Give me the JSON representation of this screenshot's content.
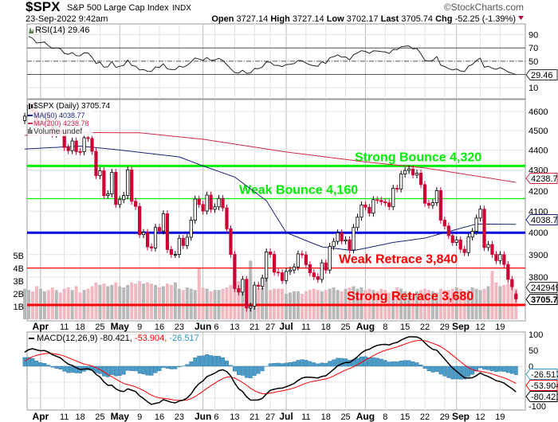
{
  "header": {
    "symbol": "$SPX",
    "name": "S&P 500 Large Cap Index",
    "exchange": "INDX",
    "copyright": "©StockCharts.com",
    "datetime": "23-Sep-2022 9:42am",
    "open_label": "Open",
    "open": "3727.14",
    "high_label": "High",
    "high": "3727.14",
    "low_label": "Low",
    "low": "3702.17",
    "last_label": "Last",
    "last": "3705.74",
    "chg_label": "Chg",
    "chg": "-52.25 (-1.39%)",
    "chg_direction": "down"
  },
  "colors": {
    "up": "#000000",
    "down": "#cc0033",
    "ma50": "#1a237e",
    "ma200": "#d0284a",
    "macd": "#000000",
    "signal": "#ff0000",
    "hist": "#4a9cc9",
    "vol_up": "#b8b8b8",
    "vol_down": "#f0b8c0",
    "green": "#00ee00",
    "blue": "#0000dd",
    "red": "#ff0000"
  },
  "chart_data": [
    {
      "type": "line",
      "panel": "RSI",
      "legend": "RSI(14) 29.46",
      "last_value_label": "29.46",
      "yticks": [
        10,
        30,
        50,
        70,
        90
      ],
      "ytick_labels": [
        "10",
        "",
        "50",
        "70",
        "90"
      ],
      "ylim": [
        0,
        100
      ],
      "reference_lines": [
        30,
        50,
        70
      ]
    },
    {
      "type": "candlestick",
      "panel": "Price",
      "scale": "log",
      "legend": [
        "$SPX (Daily) 3705.74",
        "MA(50) 4038.77",
        "MA(200) 4238.78",
        "Volume undef"
      ],
      "yticks": [
        3800,
        3900,
        4000,
        4100,
        4200,
        4300,
        4400,
        4500,
        4600
      ],
      "ylim": [
        3620,
        4660
      ],
      "last_value_label": "3705.74",
      "ma50_label": "4038.77",
      "ma200_label": "4238.78",
      "volume_label": "2429493",
      "volume_ticks": [
        "1B",
        "2B",
        "3B",
        "4B",
        "5B"
      ],
      "ma50": [
        [
          "2022-03-28",
          4405
        ],
        [
          "2022-04-18",
          4420
        ],
        [
          "2022-05-02",
          4400
        ],
        [
          "2022-05-23",
          4365
        ],
        [
          "2022-06-01",
          4320
        ],
        [
          "2022-06-13",
          4265
        ],
        [
          "2022-06-24",
          4150
        ],
        [
          "2022-07-01",
          4000
        ],
        [
          "2022-07-15",
          3935
        ],
        [
          "2022-07-27",
          3918
        ],
        [
          "2022-08-10",
          3955
        ],
        [
          "2022-08-22",
          3975
        ],
        [
          "2022-08-31",
          4010
        ],
        [
          "2022-09-09",
          4040
        ],
        [
          "2022-09-23",
          4038.77
        ]
      ],
      "ma200": [
        [
          "2022-03-28",
          4475
        ],
        [
          "2022-04-18",
          4490
        ],
        [
          "2022-05-09",
          4488
        ],
        [
          "2022-06-01",
          4455
        ],
        [
          "2022-07-01",
          4390
        ],
        [
          "2022-08-01",
          4340
        ],
        [
          "2022-08-22",
          4310
        ],
        [
          "2022-09-23",
          4238.78
        ]
      ],
      "levels": [
        {
          "value": 4320,
          "label": "Strong Bounce 4,320",
          "color": "#00ee00",
          "weight": "strong"
        },
        {
          "value": 4160,
          "label": "Weak Bounce 4,160",
          "color": "#00ee00",
          "weight": "weak"
        },
        {
          "value": 4000,
          "label": "",
          "color": "#0000dd",
          "weight": "strong"
        },
        {
          "value": 3840,
          "label": "Weak Retrace 3,840",
          "color": "#ff0000",
          "weight": "weak"
        },
        {
          "value": 3680,
          "label": "Strong Retrace 3,680",
          "color": "#ff0000",
          "weight": "strong"
        }
      ],
      "closes": [
        [
          "2022-03-28",
          4575
        ],
        [
          "2022-03-29",
          4631
        ],
        [
          "2022-03-30",
          4602
        ],
        [
          "2022-03-31",
          4530
        ],
        [
          "2022-04-01",
          4546
        ],
        [
          "2022-04-04",
          4582
        ],
        [
          "2022-04-05",
          4525
        ],
        [
          "2022-04-06",
          4481
        ],
        [
          "2022-04-07",
          4500
        ],
        [
          "2022-04-08",
          4488
        ],
        [
          "2022-04-11",
          4413
        ],
        [
          "2022-04-12",
          4397
        ],
        [
          "2022-04-13",
          4446
        ],
        [
          "2022-04-14",
          4392
        ],
        [
          "2022-04-18",
          4391
        ],
        [
          "2022-04-19",
          4463
        ],
        [
          "2022-04-20",
          4459
        ],
        [
          "2022-04-21",
          4393
        ],
        [
          "2022-04-22",
          4272
        ],
        [
          "2022-04-25",
          4296
        ],
        [
          "2022-04-26",
          4175
        ],
        [
          "2022-04-27",
          4183
        ],
        [
          "2022-04-28",
          4288
        ],
        [
          "2022-04-29",
          4132
        ],
        [
          "2022-05-02",
          4155
        ],
        [
          "2022-05-03",
          4175
        ],
        [
          "2022-05-04",
          4300
        ],
        [
          "2022-05-05",
          4147
        ],
        [
          "2022-05-06",
          4123
        ],
        [
          "2022-05-09",
          3991
        ],
        [
          "2022-05-10",
          4001
        ],
        [
          "2022-05-11",
          3935
        ],
        [
          "2022-05-12",
          3930
        ],
        [
          "2022-05-13",
          4024
        ],
        [
          "2022-05-16",
          4008
        ],
        [
          "2022-05-17",
          4088
        ],
        [
          "2022-05-18",
          3923
        ],
        [
          "2022-05-19",
          3901
        ],
        [
          "2022-05-20",
          3901
        ],
        [
          "2022-05-23",
          3974
        ],
        [
          "2022-05-24",
          3941
        ],
        [
          "2022-05-25",
          3979
        ],
        [
          "2022-05-26",
          4058
        ],
        [
          "2022-05-27",
          4158
        ],
        [
          "2022-05-31",
          4132
        ],
        [
          "2022-06-01",
          4101
        ],
        [
          "2022-06-02",
          4177
        ],
        [
          "2022-06-03",
          4109
        ],
        [
          "2022-06-06",
          4121
        ],
        [
          "2022-06-07",
          4161
        ],
        [
          "2022-06-08",
          4116
        ],
        [
          "2022-06-09",
          4018
        ],
        [
          "2022-06-10",
          3901
        ],
        [
          "2022-06-13",
          3750
        ],
        [
          "2022-06-14",
          3735
        ],
        [
          "2022-06-15",
          3790
        ],
        [
          "2022-06-16",
          3667
        ],
        [
          "2022-06-17",
          3675
        ],
        [
          "2022-06-21",
          3765
        ],
        [
          "2022-06-22",
          3760
        ],
        [
          "2022-06-23",
          3796
        ],
        [
          "2022-06-24",
          3912
        ],
        [
          "2022-06-27",
          3901
        ],
        [
          "2022-06-28",
          3822
        ],
        [
          "2022-06-29",
          3819
        ],
        [
          "2022-06-30",
          3785
        ],
        [
          "2022-07-01",
          3825
        ],
        [
          "2022-07-05",
          3831
        ],
        [
          "2022-07-06",
          3845
        ],
        [
          "2022-07-07",
          3903
        ],
        [
          "2022-07-08",
          3899
        ],
        [
          "2022-07-11",
          3855
        ],
        [
          "2022-07-12",
          3819
        ],
        [
          "2022-07-13",
          3802
        ],
        [
          "2022-07-14",
          3790
        ],
        [
          "2022-07-15",
          3863
        ],
        [
          "2022-07-18",
          3831
        ],
        [
          "2022-07-19",
          3937
        ],
        [
          "2022-07-20",
          3960
        ],
        [
          "2022-07-21",
          3999
        ],
        [
          "2022-07-22",
          3962
        ],
        [
          "2022-07-25",
          3967
        ],
        [
          "2022-07-26",
          3921
        ],
        [
          "2022-07-27",
          4024
        ],
        [
          "2022-07-28",
          4072
        ],
        [
          "2022-07-29",
          4130
        ],
        [
          "2022-08-01",
          4119
        ],
        [
          "2022-08-02",
          4091
        ],
        [
          "2022-08-03",
          4155
        ],
        [
          "2022-08-04",
          4152
        ],
        [
          "2022-08-05",
          4145
        ],
        [
          "2022-08-08",
          4140
        ],
        [
          "2022-08-09",
          4122
        ],
        [
          "2022-08-10",
          4210
        ],
        [
          "2022-08-11",
          4207
        ],
        [
          "2022-08-12",
          4280
        ],
        [
          "2022-08-15",
          4297
        ],
        [
          "2022-08-16",
          4305
        ],
        [
          "2022-08-17",
          4275
        ],
        [
          "2022-08-18",
          4284
        ],
        [
          "2022-08-19",
          4228
        ],
        [
          "2022-08-22",
          4138
        ],
        [
          "2022-08-23",
          4128
        ],
        [
          "2022-08-24",
          4141
        ],
        [
          "2022-08-25",
          4199
        ],
        [
          "2022-08-26",
          4058
        ],
        [
          "2022-08-29",
          4031
        ],
        [
          "2022-08-30",
          3986
        ],
        [
          "2022-08-31",
          3955
        ],
        [
          "2022-09-01",
          3967
        ],
        [
          "2022-09-02",
          3924
        ],
        [
          "2022-09-06",
          3909
        ],
        [
          "2022-09-07",
          3980
        ],
        [
          "2022-09-08",
          4006
        ],
        [
          "2022-09-09",
          4068
        ],
        [
          "2022-09-12",
          4110
        ],
        [
          "2022-09-13",
          3932
        ],
        [
          "2022-09-14",
          3946
        ],
        [
          "2022-09-15",
          3901
        ],
        [
          "2022-09-16",
          3873
        ],
        [
          "2022-09-19",
          3900
        ],
        [
          "2022-09-20",
          3856
        ],
        [
          "2022-09-21",
          3790
        ],
        [
          "2022-09-22",
          3758
        ],
        [
          "2022-09-23",
          3705.74
        ]
      ],
      "volume_billions": [
        2.4,
        2.3,
        2.2,
        2.6,
        2.4,
        2.2,
        2.3,
        2.5,
        2.3,
        2.1,
        2.4,
        2.5,
        2.3,
        2.6,
        2.1,
        2.3,
        2.4,
        2.6,
        2.9,
        2.7,
        2.8,
        2.6,
        2.7,
        2.9,
        2.6,
        2.5,
        2.7,
        2.9,
        2.8,
        3.0,
        2.8,
        2.9,
        2.8,
        2.7,
        2.5,
        2.6,
        2.8,
        2.7,
        2.9,
        2.4,
        2.3,
        2.5,
        2.4,
        2.3,
        4.0,
        2.5,
        2.4,
        2.2,
        2.3,
        2.3,
        2.4,
        2.5,
        2.7,
        4.0,
        3.0,
        2.8,
        3.2,
        4.6,
        2.5,
        2.4,
        2.5,
        4.4,
        2.3,
        2.4,
        2.4,
        2.4,
        2.0,
        2.1,
        2.2,
        2.2,
        2.0,
        2.2,
        2.3,
        2.4,
        2.3,
        2.2,
        2.3,
        2.4,
        2.5,
        2.3,
        2.2,
        2.4,
        2.5,
        2.6,
        2.4,
        2.5,
        2.3,
        2.4,
        2.3,
        2.2,
        2.4,
        2.3,
        2.1,
        2.2,
        2.5,
        2.4,
        2.2,
        2.1,
        2.0,
        2.2,
        2.3,
        2.4,
        2.3,
        2.2,
        2.1,
        2.4,
        2.3,
        2.3,
        2.4,
        2.5,
        2.4,
        2.2,
        2.3,
        2.5,
        2.4,
        2.3,
        2.4,
        2.6,
        3.8,
        2.9,
        2.6,
        2.7,
        2.8,
        2.9,
        2.4
      ]
    },
    {
      "type": "line",
      "panel": "MACD",
      "legend_name": "MACD(12,26,9)",
      "macd_value": "-80.421",
      "signal_value": "-53.904",
      "hist_value": "-26.517",
      "yticks": [
        -100,
        -50,
        0,
        50,
        100
      ],
      "ytick_labels": [
        "-100",
        "",
        "0",
        "50",
        "100"
      ],
      "ylim": [
        -125,
        115
      ]
    }
  ],
  "xaxis": [
    {
      "label": "Apr",
      "date": "2022-04-01",
      "bold": true
    },
    {
      "label": "11",
      "date": "2022-04-11"
    },
    {
      "label": "18",
      "date": "2022-04-18"
    },
    {
      "label": "25",
      "date": "2022-04-25"
    },
    {
      "label": "May",
      "date": "2022-05-02",
      "bold": true
    },
    {
      "label": "9",
      "date": "2022-05-09"
    },
    {
      "label": "16",
      "date": "2022-05-16"
    },
    {
      "label": "23",
      "date": "2022-05-23"
    },
    {
      "label": "Jun",
      "date": "2022-06-01",
      "bold": true
    },
    {
      "label": "6",
      "date": "2022-06-06"
    },
    {
      "label": "13",
      "date": "2022-06-13"
    },
    {
      "label": "21",
      "date": "2022-06-21"
    },
    {
      "label": "27",
      "date": "2022-06-27"
    },
    {
      "label": "Jul",
      "date": "2022-07-01",
      "bold": true
    },
    {
      "label": "11",
      "date": "2022-07-11"
    },
    {
      "label": "18",
      "date": "2022-07-18"
    },
    {
      "label": "25",
      "date": "2022-07-25"
    },
    {
      "label": "Aug",
      "date": "2022-08-01",
      "bold": true
    },
    {
      "label": "8",
      "date": "2022-08-08"
    },
    {
      "label": "15",
      "date": "2022-08-15"
    },
    {
      "label": "22",
      "date": "2022-08-22"
    },
    {
      "label": "29",
      "date": "2022-08-29"
    },
    {
      "label": "Sep",
      "date": "2022-09-01",
      "bold": true
    },
    {
      "label": "12",
      "date": "2022-09-12"
    },
    {
      "label": "19",
      "date": "2022-09-19"
    }
  ]
}
